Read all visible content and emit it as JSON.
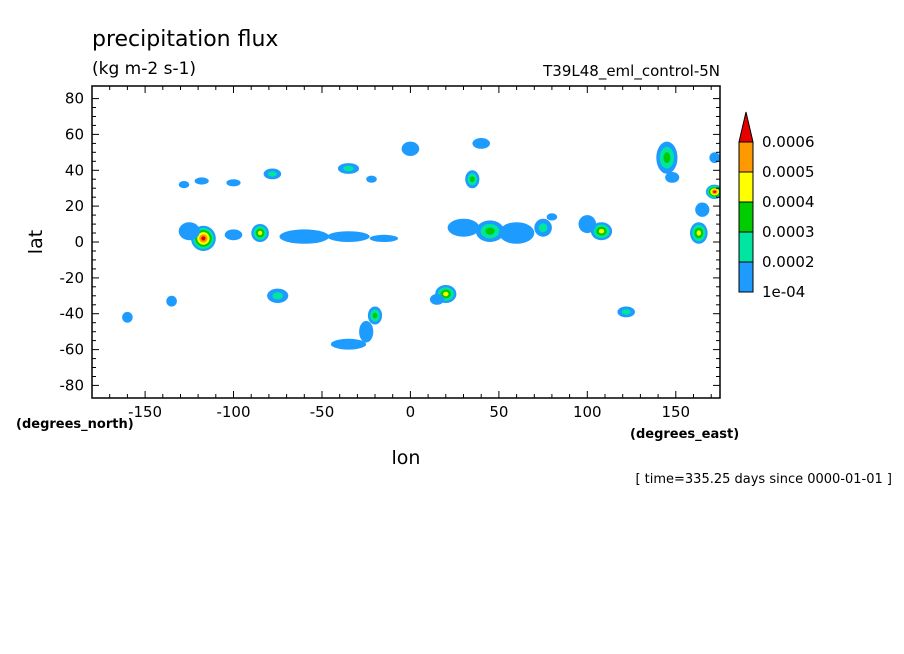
{
  "chart_data": {
    "type": "heatmap",
    "title": "precipitation flux",
    "units": "(kg m-2 s-1)",
    "dataset_label": "T39L48_eml_control-5N",
    "xlabel": "lon",
    "ylabel": "lat",
    "x_unit_label": "(degrees_east)",
    "y_unit_label": "(degrees_north)",
    "footer": "[ time=335.25 days since 0000-01-01 ]",
    "xlim": [
      -180,
      175
    ],
    "ylim": [
      -87,
      87
    ],
    "x_ticks": [
      -150,
      -100,
      -50,
      0,
      50,
      100,
      150
    ],
    "y_ticks": [
      80,
      60,
      40,
      20,
      0,
      -20,
      -40,
      -60,
      -80
    ],
    "x_tick_labels": [
      "-150",
      "-100",
      "-50",
      "0",
      "50",
      "100",
      "150"
    ],
    "y_tick_labels": [
      "80",
      "60",
      "40",
      "20",
      "0",
      "-20",
      "-40",
      "-60",
      "-80"
    ],
    "grid": false,
    "legend": "colorbar right",
    "colorbar": {
      "levels": [
        "1e-04",
        "0.0002",
        "0.0003",
        "0.0004",
        "0.0005",
        "0.0006"
      ],
      "colors": [
        "#1e9bff",
        "#00e6a0",
        "#00cc00",
        "#ffff00",
        "#ff9900",
        "#e60000"
      ],
      "extend": "max"
    },
    "features": [
      {
        "lon": -117,
        "lat": 2,
        "rx": 7,
        "ry": 7,
        "level": 6
      },
      {
        "lon": -125,
        "lat": 6,
        "rx": 6,
        "ry": 5,
        "level": 1
      },
      {
        "lon": -85,
        "lat": 5,
        "rx": 5,
        "ry": 5,
        "level": 4
      },
      {
        "lon": -100,
        "lat": 4,
        "rx": 5,
        "ry": 3,
        "level": 1
      },
      {
        "lon": -60,
        "lat": 3,
        "rx": 14,
        "ry": 4,
        "level": 1
      },
      {
        "lon": -35,
        "lat": 3,
        "rx": 12,
        "ry": 3,
        "level": 1
      },
      {
        "lon": -15,
        "lat": 2,
        "rx": 8,
        "ry": 2,
        "level": 1
      },
      {
        "lon": 45,
        "lat": 6,
        "rx": 8,
        "ry": 6,
        "level": 3
      },
      {
        "lon": 30,
        "lat": 8,
        "rx": 9,
        "ry": 5,
        "level": 1
      },
      {
        "lon": 60,
        "lat": 5,
        "rx": 10,
        "ry": 6,
        "level": 1
      },
      {
        "lon": 75,
        "lat": 8,
        "rx": 5,
        "ry": 5,
        "level": 2
      },
      {
        "lon": 108,
        "lat": 6,
        "rx": 6,
        "ry": 5,
        "level": 4
      },
      {
        "lon": 100,
        "lat": 10,
        "rx": 5,
        "ry": 5,
        "level": 1
      },
      {
        "lon": 163,
        "lat": 5,
        "rx": 5,
        "ry": 6,
        "level": 4
      },
      {
        "lon": 172,
        "lat": 28,
        "rx": 5,
        "ry": 4,
        "level": 6
      },
      {
        "lon": 165,
        "lat": 18,
        "rx": 4,
        "ry": 4,
        "level": 1
      },
      {
        "lon": 145,
        "lat": 47,
        "rx": 6,
        "ry": 9,
        "level": 3
      },
      {
        "lon": 148,
        "lat": 36,
        "rx": 4,
        "ry": 3,
        "level": 1
      },
      {
        "lon": 172,
        "lat": 47,
        "rx": 3,
        "ry": 3,
        "level": 1
      },
      {
        "lon": 35,
        "lat": 35,
        "rx": 4,
        "ry": 5,
        "level": 3
      },
      {
        "lon": 40,
        "lat": 55,
        "rx": 5,
        "ry": 3,
        "level": 1
      },
      {
        "lon": 0,
        "lat": 52,
        "rx": 5,
        "ry": 4,
        "level": 1
      },
      {
        "lon": -35,
        "lat": 41,
        "rx": 6,
        "ry": 3,
        "level": 2
      },
      {
        "lon": -22,
        "lat": 35,
        "rx": 3,
        "ry": 2,
        "level": 1
      },
      {
        "lon": -78,
        "lat": 38,
        "rx": 5,
        "ry": 3,
        "level": 2
      },
      {
        "lon": -118,
        "lat": 34,
        "rx": 4,
        "ry": 2,
        "level": 1
      },
      {
        "lon": -128,
        "lat": 32,
        "rx": 3,
        "ry": 2,
        "level": 1
      },
      {
        "lon": -100,
        "lat": 33,
        "rx": 4,
        "ry": 2,
        "level": 1
      },
      {
        "lon": 20,
        "lat": -29,
        "rx": 6,
        "ry": 5,
        "level": 4
      },
      {
        "lon": 15,
        "lat": -32,
        "rx": 4,
        "ry": 3,
        "level": 1
      },
      {
        "lon": -75,
        "lat": -30,
        "rx": 6,
        "ry": 4,
        "level": 2
      },
      {
        "lon": -20,
        "lat": -41,
        "rx": 4,
        "ry": 5,
        "level": 3
      },
      {
        "lon": -35,
        "lat": -57,
        "rx": 10,
        "ry": 3,
        "level": 1
      },
      {
        "lon": -25,
        "lat": -50,
        "rx": 4,
        "ry": 6,
        "level": 1
      },
      {
        "lon": 122,
        "lat": -39,
        "rx": 5,
        "ry": 3,
        "level": 2
      },
      {
        "lon": -135,
        "lat": -33,
        "rx": 3,
        "ry": 3,
        "level": 1
      },
      {
        "lon": -160,
        "lat": -42,
        "rx": 3,
        "ry": 3,
        "level": 1
      },
      {
        "lon": 80,
        "lat": 14,
        "rx": 3,
        "ry": 2,
        "level": 1
      }
    ]
  }
}
